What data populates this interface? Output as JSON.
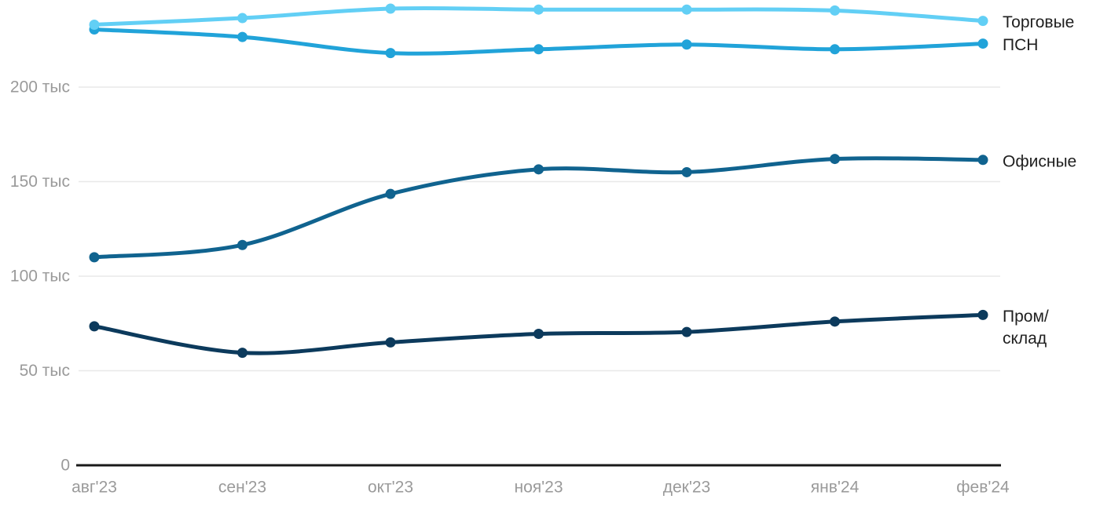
{
  "chart_data": {
    "type": "line",
    "title": "",
    "x_categories": [
      "авг'23",
      "сен'23",
      "окт'23",
      "ноя'23",
      "дек'23",
      "янв'24",
      "фев'24"
    ],
    "y_axis": {
      "unit": "тыс",
      "range": [
        0,
        246
      ],
      "ticks": [
        {
          "value": 0,
          "label": "0"
        },
        {
          "value": 50,
          "label": "50 тыс"
        },
        {
          "value": 100,
          "label": "100 тыс"
        },
        {
          "value": 150,
          "label": "150 тыс"
        },
        {
          "value": 200,
          "label": "200 тыс"
        }
      ]
    },
    "grid": "horizontal-only",
    "legend_position": "right-end-of-lines",
    "series": [
      {
        "name": "Торговые",
        "label_lines": [
          "Торговые"
        ],
        "color": "#62CFF5",
        "values": [
          233,
          236.5,
          241.5,
          241,
          241,
          240.5,
          235
        ]
      },
      {
        "name": "ПСН",
        "label_lines": [
          "ПСН"
        ],
        "color": "#21A3D9",
        "values": [
          230.5,
          226.5,
          218,
          220,
          222.5,
          220,
          223
        ]
      },
      {
        "name": "Офисные",
        "label_lines": [
          "Офисные"
        ],
        "color": "#10638F",
        "values": [
          110,
          116.5,
          143.5,
          156.5,
          155,
          162,
          161.5
        ]
      },
      {
        "name": "Пром/склад",
        "label_lines": [
          "Пром/",
          "склад"
        ],
        "color": "#0C3A5C",
        "values": [
          73.5,
          59.5,
          65,
          69.5,
          70.5,
          76,
          79.5
        ]
      }
    ],
    "colors": {
      "background": "#ffffff",
      "axis_line": "#1a1a1a",
      "grid_line": "#e8e8e8",
      "tick_label": "#9a9a9a",
      "series_label": "#1f1f1f"
    }
  }
}
